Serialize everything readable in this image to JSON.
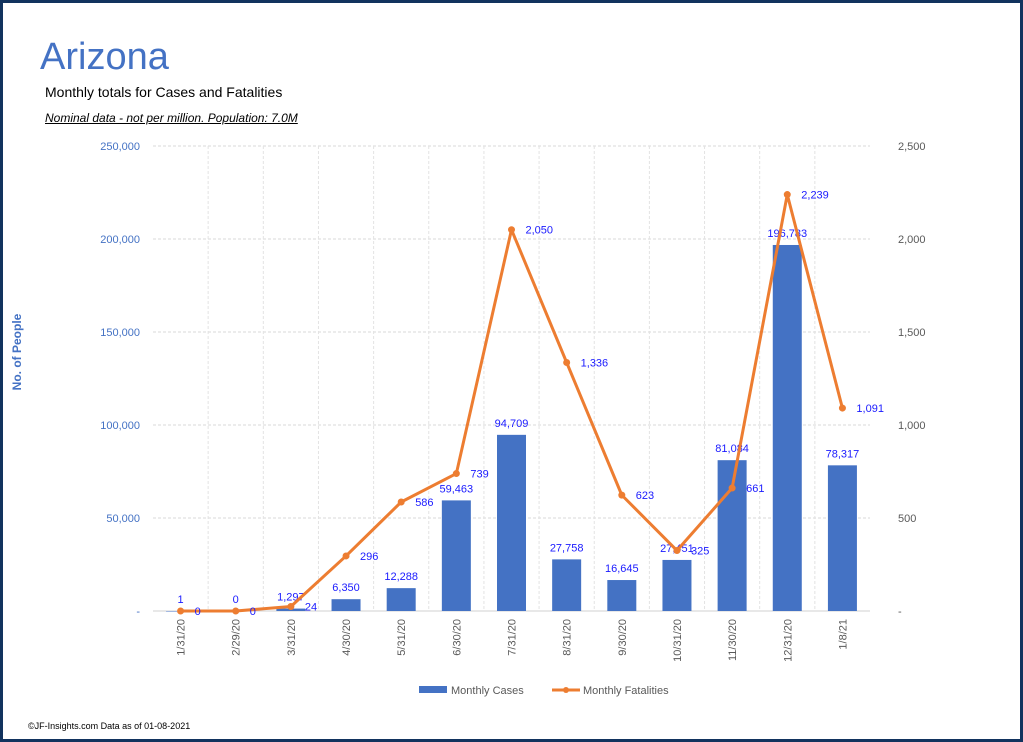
{
  "header": {
    "title": "Arizona",
    "subtitle": "Monthly totals for Cases and Fatalities",
    "note": "Nominal data - not per million.  Population: 7.0M"
  },
  "footer": "©JF-Insights.com  Data as of 01-08-2021",
  "colors": {
    "cases": "#4472c4",
    "fatalities": "#ed7d31",
    "data_label": "#1a1aff",
    "frame": "#12335e"
  },
  "chart_data": {
    "type": "bar",
    "title": "Monthly totals for Cases and Fatalities",
    "xlabel": "",
    "ylabel": "No. of People",
    "y2label": "",
    "categories": [
      "1/31/20",
      "2/29/20",
      "3/31/20",
      "4/30/20",
      "5/31/20",
      "6/30/20",
      "7/31/20",
      "8/31/20",
      "9/30/20",
      "10/31/20",
      "11/30/20",
      "12/31/20",
      "1/8/21"
    ],
    "series": [
      {
        "name": "Monthly Cases",
        "type": "bar",
        "axis": "left",
        "values": [
          1,
          0,
          1297,
          6350,
          12288,
          59463,
          94709,
          27758,
          16645,
          27451,
          81084,
          196783,
          78317
        ],
        "labels": [
          "1",
          "0",
          "1,297",
          "6,350",
          "12,288",
          "59,463",
          "94,709",
          "27,758",
          "16,645",
          "27,451",
          "81,084",
          "196,783",
          "78,317"
        ]
      },
      {
        "name": "Monthly Fatalities",
        "type": "line",
        "axis": "right",
        "values": [
          0,
          0,
          24,
          296,
          586,
          739,
          2050,
          1336,
          623,
          325,
          661,
          2239,
          1091
        ],
        "labels": [
          "0",
          "0",
          "24",
          "296",
          "586",
          "739",
          "2,050",
          "1,336",
          "623",
          "325",
          "661",
          "2,239",
          "1,091"
        ]
      }
    ],
    "ylim": [
      0,
      250000
    ],
    "y2lim": [
      0,
      2500
    ],
    "yticks": [
      "-",
      "50,000",
      "100,000",
      "150,000",
      "200,000",
      "250,000"
    ],
    "y2ticks": [
      "-",
      "500",
      "1,000",
      "1,500",
      "2,000",
      "2,500"
    ],
    "grid": true,
    "legend": {
      "position": "bottom",
      "entries": [
        "Monthly Cases",
        "Monthly Fatalities"
      ]
    }
  }
}
